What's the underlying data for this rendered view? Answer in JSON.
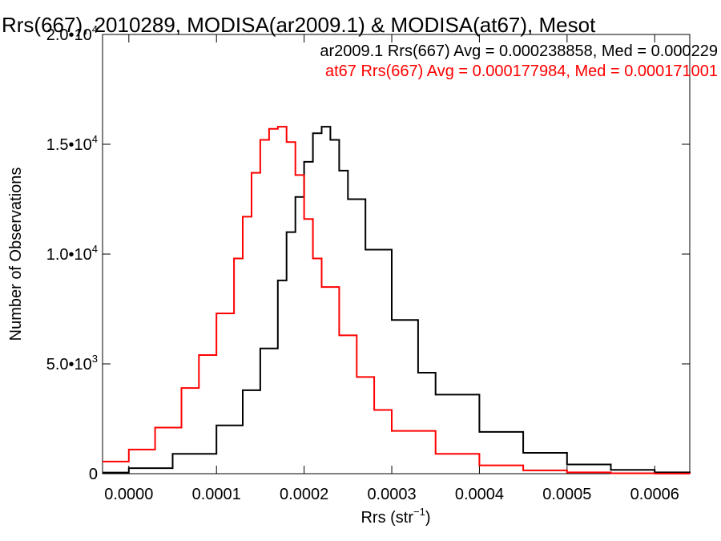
{
  "chart_data": {
    "type": "line",
    "title": "Rrs(667), 2010289, MODISA(ar2009.1) & MODISA(at67), Mesot",
    "xlabel": "Rrs (str",
    "xlabel_sup": "−1",
    "xlabel_end": ")",
    "ylabel": "Number of Observations",
    "xlim": [
      -3e-05,
      0.00064
    ],
    "ylim": [
      0,
      20000
    ],
    "x_ticks": [
      {
        "value": 0.0,
        "label": "0.0000"
      },
      {
        "value": 0.0001,
        "label": "0.0001"
      },
      {
        "value": 0.0002,
        "label": "0.0002"
      },
      {
        "value": 0.0003,
        "label": "0.0003"
      },
      {
        "value": 0.0004,
        "label": "0.0004"
      },
      {
        "value": 0.0005,
        "label": "0.0005"
      },
      {
        "value": 0.0006,
        "label": "0.0006"
      }
    ],
    "y_ticks": [
      {
        "value": 0,
        "label": "0",
        "sup": ""
      },
      {
        "value": 5000,
        "label": "5.0•10",
        "sup": "3"
      },
      {
        "value": 10000,
        "label": "1.0•10",
        "sup": "4"
      },
      {
        "value": 15000,
        "label": "1.5•10",
        "sup": "4"
      },
      {
        "value": 20000,
        "label": "2.0•10",
        "sup": "4"
      }
    ],
    "series": [
      {
        "name": "ar2009.1 Rrs(667) Avg = 0.000238858, Med = 0.000229",
        "color": "#000000",
        "x": [
          -3e-05,
          0.0,
          5e-05,
          0.0001,
          0.00013,
          0.00015,
          0.00017,
          0.00018,
          0.00019,
          0.0002,
          0.00021,
          0.00022,
          0.00023,
          0.00024,
          0.00025,
          0.00027,
          0.0003,
          0.00033,
          0.00035,
          0.0004,
          0.00045,
          0.0005,
          0.00055,
          0.0006,
          0.00064
        ],
        "values": [
          50,
          250,
          900,
          2200,
          3800,
          5700,
          8800,
          11000,
          12600,
          14200,
          15500,
          15800,
          15200,
          13800,
          12500,
          10200,
          7000,
          4600,
          3600,
          1900,
          950,
          420,
          170,
          60,
          20
        ]
      },
      {
        "name": "at67 Rrs(667) Avg = 0.000177984, Med = 0.000171001",
        "color": "#ff0000",
        "x": [
          -3e-05,
          0.0,
          3e-05,
          6e-05,
          8e-05,
          0.0001,
          0.00012,
          0.00013,
          0.00014,
          0.00015,
          0.00016,
          0.00017,
          0.00018,
          0.00019,
          0.0002,
          0.00021,
          0.00022,
          0.00024,
          0.00026,
          0.00028,
          0.0003,
          0.00035,
          0.0004,
          0.00045,
          0.0005,
          0.00055,
          0.0006,
          0.00064
        ],
        "values": [
          550,
          1100,
          2100,
          3900,
          5400,
          7300,
          9800,
          11700,
          13700,
          15200,
          15700,
          15800,
          15100,
          13600,
          11600,
          9800,
          8500,
          6300,
          4400,
          2900,
          1950,
          900,
          380,
          150,
          60,
          20,
          5,
          0
        ]
      }
    ],
    "legend": "top-right",
    "grid": false
  }
}
